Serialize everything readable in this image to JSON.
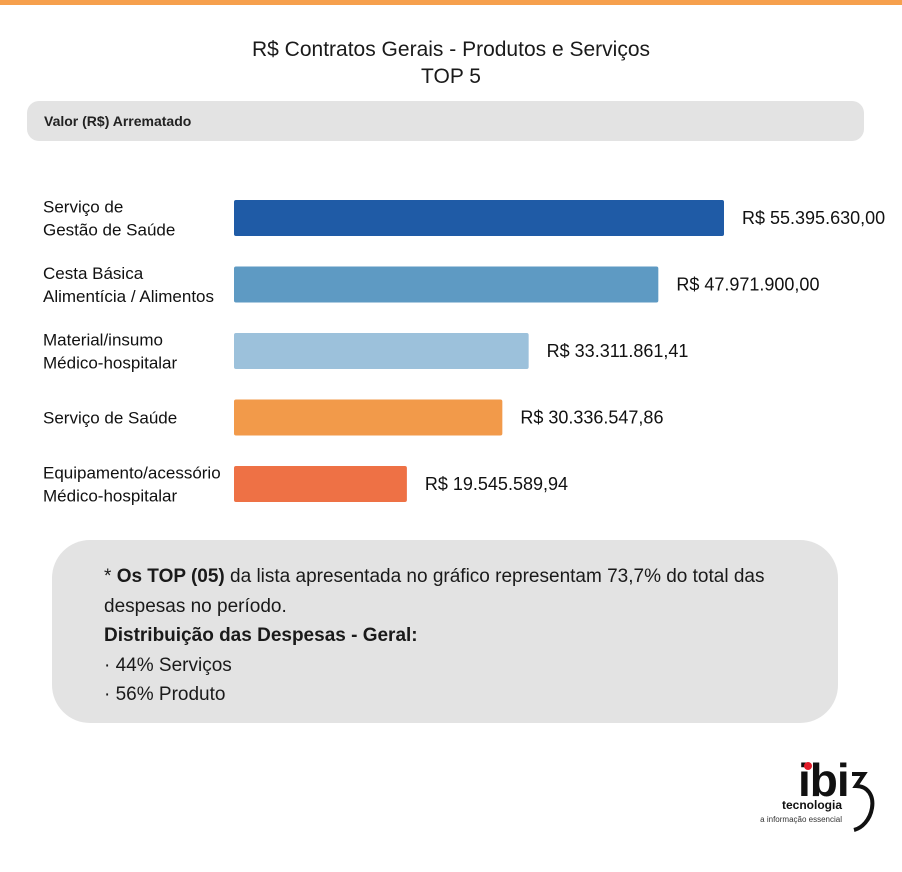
{
  "header": {
    "title": "R$ Contratos Gerais - Produtos e Serviços",
    "subtitle": "TOP 5",
    "metric_label": "Valor (R$) Arrematado"
  },
  "chart_data": {
    "type": "bar",
    "orientation": "horizontal",
    "title": "R$ Contratos Gerais - Produtos e Serviços",
    "subtitle": "TOP 5",
    "xlabel": "Valor (R$) Arrematado",
    "ylabel": "",
    "grid": false,
    "legend": "none",
    "xlim": [
      0,
      55395630.0
    ],
    "categories": [
      [
        "Serviço de",
        "Gestão de Saúde"
      ],
      [
        "Cesta Básica",
        "Alimentícia / Alimentos"
      ],
      [
        "Material/insumo",
        "Médico-hospitalar"
      ],
      [
        "Serviço de Saúde"
      ],
      [
        "Equipamento/acessório",
        "Médico-hospitalar"
      ]
    ],
    "values": [
      55395630.0,
      47971900.0,
      33311861.41,
      30336547.86,
      19545589.94
    ],
    "value_labels": [
      "R$ 55.395.630,00",
      "R$ 47.971.900,00",
      "R$ 33.311.861,41",
      "R$ 30.336.547,86",
      "R$ 19.545.589,94"
    ],
    "colors": [
      "#1f5ba6",
      "#5e9ac3",
      "#9cc1db",
      "#f29a4a",
      "#ee7145"
    ]
  },
  "note": {
    "line1_prefix": "* ",
    "line1_bold": "Os TOP (05)",
    "line1_rest": " da lista apresentada no gráfico representam 73,7% do total das",
    "line2": "despesas no período.",
    "heading": "Distribuição das Despesas - Geral:",
    "items": [
      "· 44% Serviços",
      "· 56% Produto"
    ]
  },
  "logo": {
    "mark": "ibi",
    "name": "tecnologia",
    "tagline": "a informação essencial",
    "accent_color": "#e11d2a"
  }
}
